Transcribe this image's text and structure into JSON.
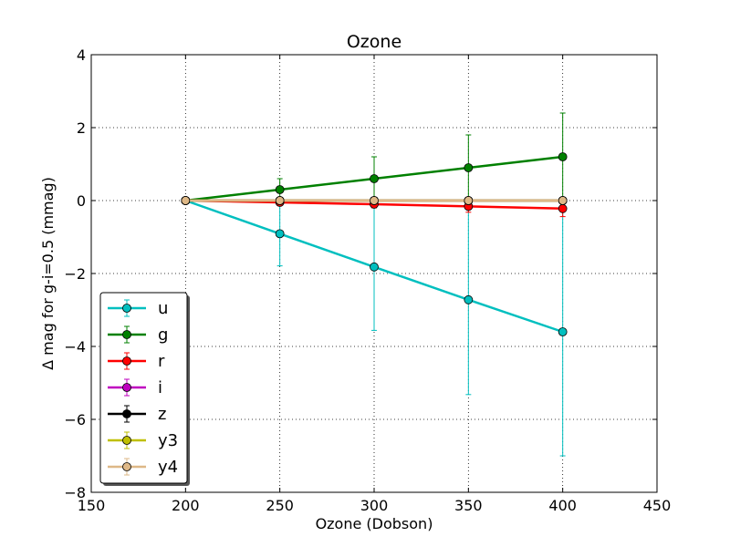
{
  "chart_data": {
    "type": "line",
    "title": "Ozone",
    "xlabel": "Ozone (Dobson)",
    "ylabel": "Δ mag for g-i=0.5 (mmag)",
    "xlim": [
      150,
      450
    ],
    "ylim": [
      -8,
      4
    ],
    "xticks": [
      150,
      200,
      250,
      300,
      350,
      400,
      450
    ],
    "yticks": [
      -8,
      -6,
      -4,
      -2,
      0,
      2,
      4
    ],
    "xtick_labels": [
      "150",
      "200",
      "250",
      "300",
      "350",
      "400",
      "450"
    ],
    "ytick_labels": [
      "−8",
      "−6",
      "−4",
      "−2",
      "0",
      "2",
      "4"
    ],
    "grid": true,
    "legend_position": "lower-left",
    "x": [
      200,
      250,
      300,
      350,
      400
    ],
    "series": [
      {
        "name": "u",
        "color": "#00bfbf",
        "values": [
          0,
          -0.91,
          -1.82,
          -2.72,
          -3.6
        ],
        "errors": [
          0,
          0.88,
          1.74,
          2.6,
          3.4
        ]
      },
      {
        "name": "g",
        "color": "#008000",
        "values": [
          0,
          0.3,
          0.6,
          0.9,
          1.2
        ],
        "errors": [
          0,
          0.3,
          0.6,
          0.9,
          1.2
        ]
      },
      {
        "name": "r",
        "color": "#ff0000",
        "values": [
          0,
          -0.05,
          -0.1,
          -0.16,
          -0.22
        ],
        "errors": [
          0,
          0.05,
          0.1,
          0.16,
          0.22
        ]
      },
      {
        "name": "i",
        "color": "#bf00bf",
        "values": [
          0,
          0,
          0,
          0,
          0
        ],
        "errors": [
          0,
          0,
          0,
          0,
          0
        ]
      },
      {
        "name": "z",
        "color": "#000000",
        "values": [
          0,
          0,
          0,
          0,
          0
        ],
        "errors": [
          0,
          0,
          0,
          0,
          0
        ]
      },
      {
        "name": "y3",
        "color": "#bfbf00",
        "values": [
          0,
          0,
          0,
          0,
          0
        ],
        "errors": [
          0,
          0,
          0,
          0,
          0
        ]
      },
      {
        "name": "y4",
        "color": "#deb887",
        "values": [
          0,
          0,
          0,
          0,
          0
        ],
        "errors": [
          0,
          0,
          0,
          0,
          0
        ]
      }
    ]
  }
}
